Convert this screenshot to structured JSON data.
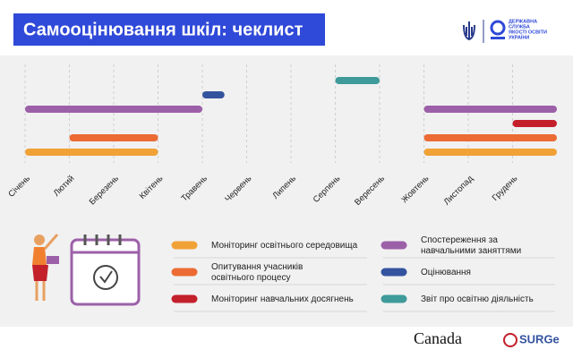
{
  "header": {
    "title": "Самооцінювання шкіл: чеклист",
    "logo_text": [
      "ДЕРЖАВНА",
      "СЛУЖБА",
      "ЯКОСТІ ОСВІТИ",
      "УКРАЇНИ"
    ]
  },
  "chart_data": {
    "type": "gantt",
    "categories": [
      "Січень",
      "Лютий",
      "Березень",
      "Квітень",
      "Травень",
      "Червень",
      "Липень",
      "Серпень",
      "Вересень",
      "Жовтень",
      "Листопад",
      "Грудень"
    ],
    "xlim": [
      0,
      12
    ],
    "grid": true,
    "series": [
      {
        "name": "Моніторинг освітнього середовища",
        "color": "#f0a236",
        "segments": [
          [
            0,
            3
          ],
          [
            9,
            12
          ]
        ]
      },
      {
        "name": "Опитування учасників освітнього процесу",
        "color": "#ec6a34",
        "segments": [
          [
            1,
            3
          ],
          [
            9,
            12
          ]
        ]
      },
      {
        "name": "Моніторинг навчальних досягнень",
        "color": "#c3202b",
        "segments": [
          [
            11,
            12
          ]
        ]
      },
      {
        "name": "Спостереження за навчальними заняттями",
        "color": "#9c60a8",
        "segments": [
          [
            0,
            4
          ],
          [
            9,
            12
          ]
        ]
      },
      {
        "name": "Оцінювання",
        "color": "#34539f",
        "segments": [
          [
            4,
            4.5
          ]
        ]
      },
      {
        "name": "Звіт про освітню діяльність",
        "color": "#3f9a9a",
        "segments": [
          [
            7,
            8
          ]
        ]
      }
    ]
  },
  "footer": {
    "sponsors": [
      "Canada",
      "SURGe"
    ]
  }
}
